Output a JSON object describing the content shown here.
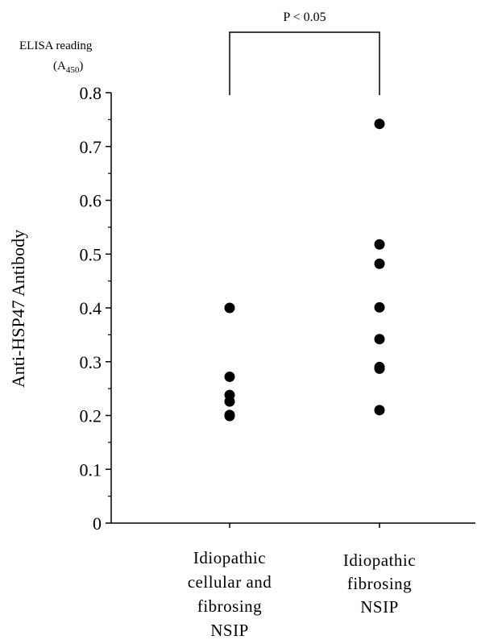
{
  "chart_data": {
    "type": "scatter",
    "ylabel": "Anti-HSP47 Antibody",
    "unit_label": {
      "line1": "ELISA reading",
      "line2_base": "(A",
      "line2_sub": "450",
      "line2_end": ")"
    },
    "ylim": [
      0,
      0.8
    ],
    "yticks": [
      "0",
      "0.1",
      "0.2",
      "0.3",
      "0.4",
      "0.5",
      "0.6",
      "0.7",
      "0.8"
    ],
    "categories": [
      [
        "Idiopathic",
        "cellular and",
        "fibrosing",
        "NSIP"
      ],
      [
        "Idiopathic",
        "fibrosing",
        "NSIP"
      ]
    ],
    "series": [
      {
        "values": [
          0.4,
          0.272,
          0.238,
          0.226,
          0.201,
          0.199
        ]
      },
      {
        "values": [
          0.742,
          0.518,
          0.482,
          0.401,
          0.342,
          0.29,
          0.287,
          0.21
        ]
      }
    ],
    "annotation": {
      "text": "P < 0.05",
      "between": [
        0,
        1
      ]
    },
    "marker_color": "#000000"
  }
}
